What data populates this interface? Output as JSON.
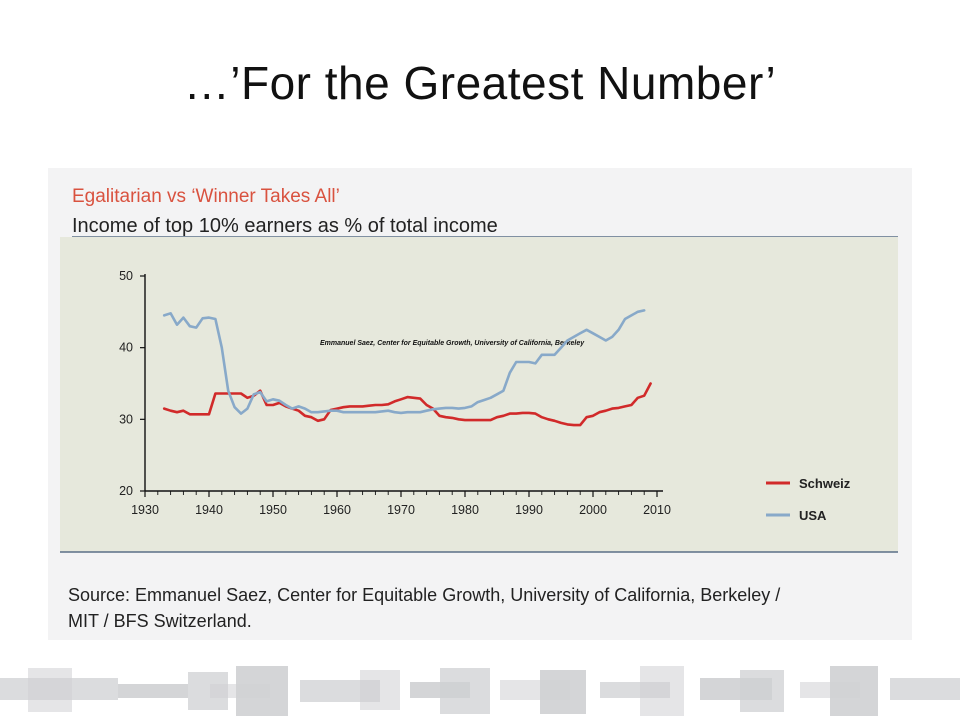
{
  "slide": {
    "title": "…’For the Greatest Number’"
  },
  "chart_data": {
    "type": "line",
    "title": "Egalitarian vs ‘Winner Takes All’",
    "subtitle": "Income of top 10% earners as % of total income",
    "annotation": "Emmanuel Saez, Center for Equitable Growth, University of California, Berkeley",
    "xlim": [
      1930,
      2010
    ],
    "ylim": [
      20,
      50
    ],
    "x_ticks": [
      1930,
      1940,
      1950,
      1960,
      1970,
      1980,
      1990,
      2000,
      2010
    ],
    "y_ticks": [
      20,
      30,
      40,
      50
    ],
    "grid": false,
    "legend_position": "right",
    "series": [
      {
        "name": "Schweiz",
        "color": "#d12a2a",
        "points": [
          [
            1933,
            31.5
          ],
          [
            1934,
            31.2
          ],
          [
            1935,
            31.0
          ],
          [
            1936,
            31.2
          ],
          [
            1937,
            30.7
          ],
          [
            1938,
            30.7
          ],
          [
            1939,
            30.7
          ],
          [
            1940,
            30.7
          ],
          [
            1941,
            33.6
          ],
          [
            1942,
            33.6
          ],
          [
            1943,
            33.6
          ],
          [
            1944,
            33.6
          ],
          [
            1945,
            33.6
          ],
          [
            1946,
            33.0
          ],
          [
            1947,
            33.3
          ],
          [
            1948,
            34.0
          ],
          [
            1949,
            32.0
          ],
          [
            1950,
            32.0
          ],
          [
            1951,
            32.3
          ],
          [
            1952,
            31.8
          ],
          [
            1953,
            31.5
          ],
          [
            1954,
            31.2
          ],
          [
            1955,
            30.5
          ],
          [
            1956,
            30.3
          ],
          [
            1957,
            29.8
          ],
          [
            1958,
            30.0
          ],
          [
            1959,
            31.3
          ],
          [
            1960,
            31.5
          ],
          [
            1961,
            31.7
          ],
          [
            1962,
            31.8
          ],
          [
            1963,
            31.8
          ],
          [
            1964,
            31.8
          ],
          [
            1965,
            31.9
          ],
          [
            1966,
            32.0
          ],
          [
            1967,
            32.0
          ],
          [
            1968,
            32.1
          ],
          [
            1969,
            32.5
          ],
          [
            1970,
            32.8
          ],
          [
            1971,
            33.1
          ],
          [
            1972,
            33.0
          ],
          [
            1973,
            32.9
          ],
          [
            1974,
            32.0
          ],
          [
            1975,
            31.5
          ],
          [
            1976,
            30.5
          ],
          [
            1977,
            30.3
          ],
          [
            1978,
            30.2
          ],
          [
            1979,
            30.0
          ],
          [
            1980,
            29.9
          ],
          [
            1981,
            29.9
          ],
          [
            1982,
            29.9
          ],
          [
            1983,
            29.9
          ],
          [
            1984,
            29.9
          ],
          [
            1985,
            30.3
          ],
          [
            1986,
            30.5
          ],
          [
            1987,
            30.8
          ],
          [
            1988,
            30.8
          ],
          [
            1989,
            30.9
          ],
          [
            1990,
            30.9
          ],
          [
            1991,
            30.8
          ],
          [
            1992,
            30.3
          ],
          [
            1993,
            30.0
          ],
          [
            1994,
            29.8
          ],
          [
            1995,
            29.5
          ],
          [
            1996,
            29.3
          ],
          [
            1997,
            29.2
          ],
          [
            1998,
            29.2
          ],
          [
            1999,
            30.3
          ],
          [
            2000,
            30.5
          ],
          [
            2001,
            31.0
          ],
          [
            2002,
            31.2
          ],
          [
            2003,
            31.5
          ],
          [
            2004,
            31.6
          ],
          [
            2005,
            31.8
          ],
          [
            2006,
            32.0
          ],
          [
            2007,
            33.0
          ],
          [
            2008,
            33.3
          ],
          [
            2009,
            35.0
          ]
        ]
      },
      {
        "name": "USA",
        "color": "#88a9c9",
        "points": [
          [
            1933,
            44.5
          ],
          [
            1934,
            44.8
          ],
          [
            1935,
            43.2
          ],
          [
            1936,
            44.2
          ],
          [
            1937,
            43.0
          ],
          [
            1938,
            42.8
          ],
          [
            1939,
            44.1
          ],
          [
            1940,
            44.2
          ],
          [
            1941,
            44.0
          ],
          [
            1942,
            40.0
          ],
          [
            1943,
            34.0
          ],
          [
            1944,
            31.7
          ],
          [
            1945,
            30.8
          ],
          [
            1946,
            31.5
          ],
          [
            1947,
            33.5
          ],
          [
            1948,
            33.8
          ],
          [
            1949,
            32.5
          ],
          [
            1950,
            32.8
          ],
          [
            1951,
            32.6
          ],
          [
            1952,
            32.0
          ],
          [
            1953,
            31.5
          ],
          [
            1954,
            31.8
          ],
          [
            1955,
            31.5
          ],
          [
            1956,
            31.0
          ],
          [
            1957,
            31.0
          ],
          [
            1958,
            31.1
          ],
          [
            1959,
            31.2
          ],
          [
            1960,
            31.2
          ],
          [
            1961,
            31.0
          ],
          [
            1962,
            31.0
          ],
          [
            1963,
            31.0
          ],
          [
            1964,
            31.0
          ],
          [
            1965,
            31.0
          ],
          [
            1966,
            31.0
          ],
          [
            1967,
            31.1
          ],
          [
            1968,
            31.2
          ],
          [
            1969,
            31.0
          ],
          [
            1970,
            30.9
          ],
          [
            1971,
            31.0
          ],
          [
            1972,
            31.0
          ],
          [
            1973,
            31.0
          ],
          [
            1974,
            31.2
          ],
          [
            1975,
            31.4
          ],
          [
            1976,
            31.5
          ],
          [
            1977,
            31.6
          ],
          [
            1978,
            31.6
          ],
          [
            1979,
            31.5
          ],
          [
            1980,
            31.6
          ],
          [
            1981,
            31.8
          ],
          [
            1982,
            32.4
          ],
          [
            1983,
            32.7
          ],
          [
            1984,
            33.0
          ],
          [
            1985,
            33.5
          ],
          [
            1986,
            34.0
          ],
          [
            1987,
            36.5
          ],
          [
            1988,
            38.0
          ],
          [
            1989,
            38.0
          ],
          [
            1990,
            38.0
          ],
          [
            1991,
            37.8
          ],
          [
            1992,
            39.0
          ],
          [
            1993,
            39.0
          ],
          [
            1994,
            39.0
          ],
          [
            1995,
            40.0
          ],
          [
            1996,
            41.0
          ],
          [
            1997,
            41.5
          ],
          [
            1998,
            42.0
          ],
          [
            1999,
            42.5
          ],
          [
            2000,
            42.0
          ],
          [
            2001,
            41.5
          ],
          [
            2002,
            41.0
          ],
          [
            2003,
            41.5
          ],
          [
            2004,
            42.5
          ],
          [
            2005,
            44.0
          ],
          [
            2006,
            44.5
          ],
          [
            2007,
            45.0
          ],
          [
            2008,
            45.2
          ]
        ]
      }
    ]
  },
  "source": {
    "line1": "Source:  Emmanuel Saez, Center for Equitable Growth, University of California, Berkeley /",
    "line2": "MIT / BFS Switzerland."
  },
  "colors": {
    "title_accent": "#d9523f",
    "plot_background": "#e6e8dc",
    "footer_gray": "#cfd0d3"
  }
}
